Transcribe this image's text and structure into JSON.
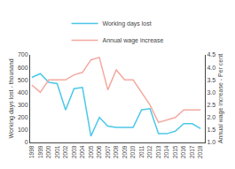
{
  "chart_data": {
    "type": "line",
    "x": [
      1998,
      1999,
      2000,
      2001,
      2002,
      2003,
      2004,
      2005,
      2006,
      2007,
      2008,
      2009,
      2010,
      2011,
      2012,
      2013,
      2014,
      2015,
      2016,
      2017,
      2018
    ],
    "series": [
      {
        "name": "Working days lost",
        "color": "#4bc8e8",
        "values": [
          520,
          550,
          480,
          470,
          260,
          430,
          440,
          50,
          200,
          130,
          120,
          120,
          120,
          260,
          270,
          70,
          70,
          90,
          150,
          150,
          110
        ]
      },
      {
        "name": "Annual wage increase",
        "color": "#f4a9a0",
        "axis": "y2",
        "values": [
          3.3,
          3.0,
          3.5,
          3.5,
          3.5,
          3.7,
          3.8,
          4.3,
          4.4,
          3.1,
          3.9,
          3.5,
          3.5,
          3.0,
          2.5,
          1.8,
          1.9,
          2.0,
          2.3,
          2.3,
          2.3
        ]
      }
    ],
    "xlim": [
      1997.8,
      2018.5
    ],
    "xticks": [
      1998,
      1999,
      2000,
      2001,
      2002,
      2003,
      2004,
      2005,
      2006,
      2007,
      2008,
      2009,
      2010,
      2011,
      2012,
      2013,
      2014,
      2015,
      2016,
      2017,
      2018
    ],
    "ylim": [
      0,
      700
    ],
    "yticks": [
      0,
      100,
      200,
      300,
      400,
      500,
      600,
      700
    ],
    "y2lim": [
      1.0,
      4.5
    ],
    "y2ticks": [
      {
        "value": 1,
        "label": "1.0"
      },
      1.5,
      {
        "value": 2,
        "label": "2.0"
      },
      2.5,
      {
        "value": 3,
        "label": "3.0"
      },
      3.5,
      {
        "value": 4,
        "label": "4.0"
      },
      4.5
    ],
    "ylabel": "Working days lost - thousand",
    "y2label": "Annual wage increase - Per cent",
    "grid": false,
    "legend": "top"
  }
}
